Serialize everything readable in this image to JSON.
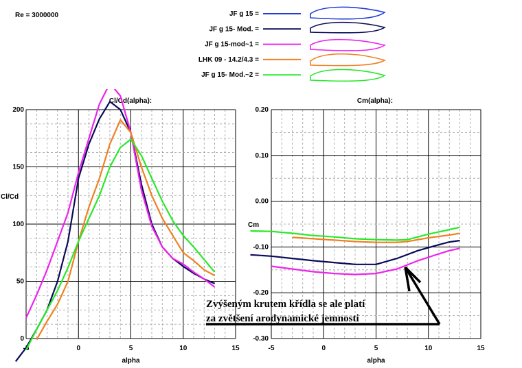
{
  "header": {
    "reynolds": "Re = 3000000"
  },
  "legend": [
    {
      "name": "JF g  15 =",
      "color": "#1e3cd8"
    },
    {
      "name": "JF g  15- Mod. =",
      "color": "#0a0a5a"
    },
    {
      "name": "JF g  15-mod~1 =",
      "color": "#ee22ee"
    },
    {
      "name": "LHK 09 - 14.2/4.3 =",
      "color": "#f08020"
    },
    {
      "name": "JF g  15- Mod.~2 =",
      "color": "#28e828"
    }
  ],
  "annotation": {
    "line1": "Zvýšeným krutem křídla se ale platí",
    "line2": "za zvětšení arodynamické jemnosti"
  },
  "chart_data": [
    {
      "type": "line",
      "title": "Cl/Cd(alpha):",
      "xlabel": "alpha",
      "ylabel": "Cl/Cd",
      "xlim": [
        -5,
        15
      ],
      "ylim": [
        0,
        200
      ],
      "xticks": [
        "-5",
        "0",
        "5",
        "10",
        "15"
      ],
      "yticks": [
        "0",
        "50",
        "100",
        "150",
        "200"
      ],
      "grid": true,
      "series": [
        {
          "name": "JF g  15- Mod. =",
          "color": "#0a0a5a",
          "points": [
            [
              -6,
              -20
            ],
            [
              -5,
              -8
            ],
            [
              -4,
              8
            ],
            [
              -3,
              25
            ],
            [
              -2,
              50
            ],
            [
              -1,
              85
            ],
            [
              0,
              140
            ],
            [
              1,
              170
            ],
            [
              2,
              192
            ],
            [
              3,
              207
            ],
            [
              4,
              200
            ],
            [
              5,
              180
            ],
            [
              6,
              135
            ],
            [
              7,
              100
            ],
            [
              8,
              80
            ],
            [
              9,
              70
            ],
            [
              10,
              63
            ],
            [
              11,
              57
            ],
            [
              12,
              52
            ],
            [
              13,
              48
            ]
          ]
        },
        {
          "name": "JF g  15-mod~1 =",
          "color": "#ee22ee",
          "points": [
            [
              -5,
              18
            ],
            [
              -4,
              38
            ],
            [
              -3,
              60
            ],
            [
              -2,
              85
            ],
            [
              -1,
              110
            ],
            [
              0,
              145
            ],
            [
              1,
              175
            ],
            [
              2,
              205
            ],
            [
              3,
              223
            ],
            [
              4,
              212
            ],
            [
              5,
              180
            ],
            [
              6,
              130
            ],
            [
              7,
              98
            ],
            [
              8,
              80
            ],
            [
              9,
              70
            ],
            [
              10,
              65
            ],
            [
              11,
              58
            ],
            [
              12,
              52
            ],
            [
              13,
              45
            ]
          ]
        },
        {
          "name": "LHK 09 - 14.2/4.3 =",
          "color": "#f08020",
          "points": [
            [
              -4,
              -1
            ],
            [
              -3,
              15
            ],
            [
              -2,
              30
            ],
            [
              -1,
              50
            ],
            [
              0,
              85
            ],
            [
              1,
              115
            ],
            [
              2,
              140
            ],
            [
              3,
              170
            ],
            [
              4,
              191
            ],
            [
              5,
              180
            ],
            [
              6,
              150
            ],
            [
              7,
              125
            ],
            [
              8,
              105
            ],
            [
              9,
              90
            ],
            [
              10,
              75
            ],
            [
              11,
              68
            ],
            [
              12,
              60
            ],
            [
              13,
              55
            ]
          ]
        },
        {
          "name": "JF g  15- Mod.~2 =",
          "color": "#28e828",
          "points": [
            [
              -5,
              -10
            ],
            [
              -4,
              8
            ],
            [
              -3,
              25
            ],
            [
              -2,
              42
            ],
            [
              -1,
              62
            ],
            [
              0,
              85
            ],
            [
              1,
              105
            ],
            [
              2,
              125
            ],
            [
              3,
              150
            ],
            [
              4,
              167
            ],
            [
              5,
              174
            ],
            [
              6,
              160
            ],
            [
              7,
              140
            ],
            [
              8,
              120
            ],
            [
              9,
              103
            ],
            [
              10,
              90
            ],
            [
              11,
              80
            ],
            [
              12,
              69
            ],
            [
              13,
              58
            ]
          ]
        }
      ]
    },
    {
      "type": "line",
      "title": "Cm(alpha):",
      "xlabel": "alpha",
      "ylabel": "Cm",
      "xlim": [
        -5,
        15
      ],
      "ylim": [
        -0.3,
        0.2
      ],
      "xticks": [
        "-5",
        "0",
        "5",
        "10",
        "15"
      ],
      "yticks": [
        "-0.30",
        "-0.20",
        "-0.10",
        "0.00",
        "0.10",
        "0.20"
      ],
      "grid": true,
      "series": [
        {
          "name": "JF g  15- Mod. =",
          "color": "#0a0a5a",
          "points": [
            [
              -7,
              -0.117
            ],
            [
              -5,
              -0.12
            ],
            [
              -3,
              -0.125
            ],
            [
              -1,
              -0.13
            ],
            [
              1,
              -0.134
            ],
            [
              3,
              -0.138
            ],
            [
              5,
              -0.138
            ],
            [
              7,
              -0.125
            ],
            [
              9,
              -0.108
            ],
            [
              11,
              -0.095
            ],
            [
              12,
              -0.089
            ],
            [
              13,
              -0.086
            ]
          ]
        },
        {
          "name": "JF g  15-mod~1 =",
          "color": "#ee22ee",
          "points": [
            [
              -5,
              -0.142
            ],
            [
              -3,
              -0.148
            ],
            [
              -1,
              -0.154
            ],
            [
              1,
              -0.158
            ],
            [
              3,
              -0.16
            ],
            [
              5,
              -0.158
            ],
            [
              7,
              -0.148
            ],
            [
              9,
              -0.13
            ],
            [
              11,
              -0.115
            ],
            [
              12,
              -0.108
            ],
            [
              13,
              -0.103
            ]
          ]
        },
        {
          "name": "LHK 09 - 14.2/4.3 =",
          "color": "#f08020",
          "points": [
            [
              -3,
              -0.079
            ],
            [
              -1,
              -0.082
            ],
            [
              1,
              -0.085
            ],
            [
              3,
              -0.088
            ],
            [
              5,
              -0.09
            ],
            [
              7,
              -0.09
            ],
            [
              8,
              -0.088
            ],
            [
              10,
              -0.08
            ],
            [
              12,
              -0.074
            ],
            [
              13,
              -0.07
            ]
          ]
        },
        {
          "name": "JF g  15- Mod.~2 =",
          "color": "#28e828",
          "points": [
            [
              -7,
              -0.065
            ],
            [
              -5,
              -0.066
            ],
            [
              -3,
              -0.07
            ],
            [
              -1,
              -0.075
            ],
            [
              1,
              -0.078
            ],
            [
              3,
              -0.082
            ],
            [
              5,
              -0.084
            ],
            [
              7,
              -0.085
            ],
            [
              8,
              -0.084
            ],
            [
              10,
              -0.072
            ],
            [
              12,
              -0.062
            ],
            [
              13,
              -0.057
            ]
          ]
        }
      ]
    }
  ]
}
